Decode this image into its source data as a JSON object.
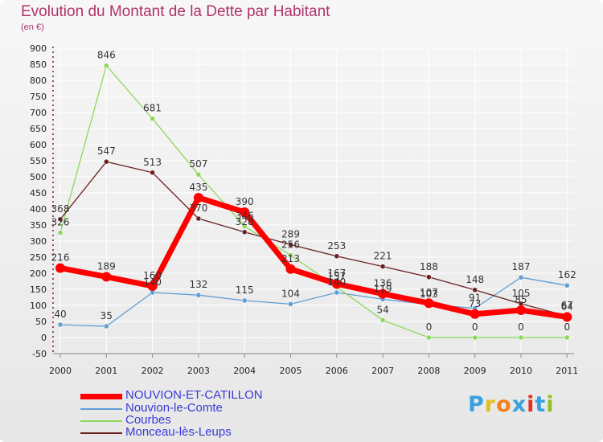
{
  "title": "Evolution du Montant de la Dette par Habitant",
  "subtitle": "(en €)",
  "logo": {
    "text": "Proxiti",
    "colors": [
      "#3aa0e0",
      "#e0c020",
      "#f08020",
      "#3aa0e0",
      "#e03020",
      "#3aa0e0",
      "#90c020"
    ]
  },
  "chart_data": {
    "type": "line",
    "title": "Evolution du Montant de la Dette par Habitant",
    "subtitle": "(en €)",
    "x": [
      "2000",
      "2001",
      "2002",
      "2003",
      "2004",
      "2005",
      "2006",
      "2007",
      "2008",
      "2009",
      "2010",
      "2011"
    ],
    "ylim": [
      -50,
      900
    ],
    "yticks": [
      -50,
      0,
      50,
      100,
      150,
      200,
      250,
      300,
      350,
      400,
      450,
      500,
      550,
      600,
      650,
      700,
      750,
      800,
      850,
      900
    ],
    "grid": true,
    "legend_position": "bottom-left",
    "series": [
      {
        "name": "NOUVION-ET-CATILLON",
        "color": "#ff0000",
        "values": [
          216,
          189,
          160,
          435,
          390,
          213,
          167,
          136,
          107,
          73,
          85,
          64
        ]
      },
      {
        "name": "Nouvion-le-Comte",
        "color": "#5f9dd6",
        "values": [
          40,
          35,
          140,
          132,
          115,
          104,
          140,
          119,
          103,
          91,
          187,
          162
        ]
      },
      {
        "name": "Courbes",
        "color": "#8ed85c",
        "values": [
          326,
          846,
          681,
          507,
          346,
          256,
          157,
          54,
          0,
          0,
          0,
          0
        ]
      },
      {
        "name": "Monceau-lès-Leups",
        "color": "#6b2020",
        "values": [
          368,
          547,
          513,
          370,
          328,
          289,
          253,
          221,
          188,
          148,
          105,
          67
        ]
      }
    ]
  }
}
